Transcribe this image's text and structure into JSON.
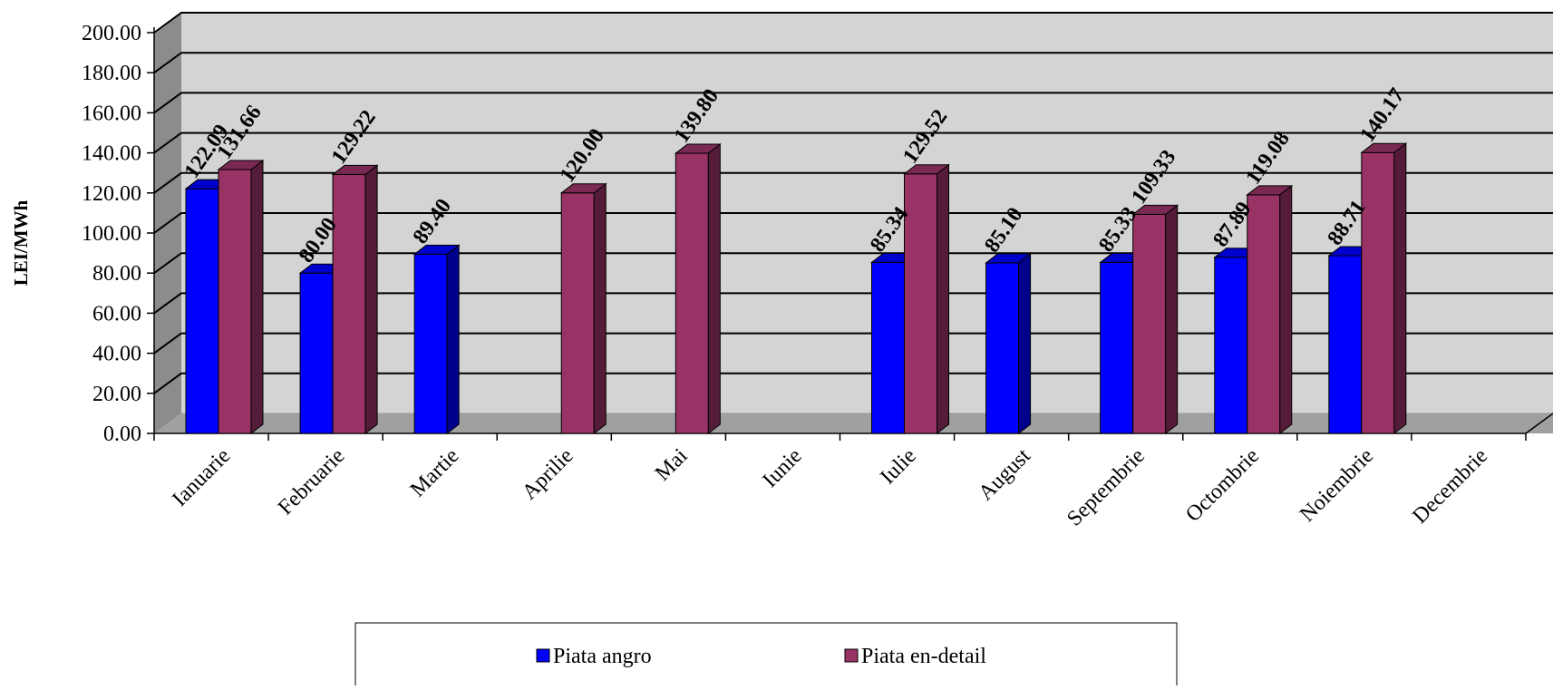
{
  "chart_data": {
    "type": "bar",
    "title": "",
    "xlabel": "",
    "ylabel": "LEI/MWh",
    "ylim": [
      0,
      200
    ],
    "y_ticks": [
      "0.00",
      "20.00",
      "40.00",
      "60.00",
      "80.00",
      "100.00",
      "120.00",
      "140.00",
      "160.00",
      "180.00",
      "200.00"
    ],
    "grid": true,
    "legend_position": "bottom",
    "categories": [
      "Ianuarie",
      "Februarie",
      "Martie",
      "Aprilie",
      "Mai",
      "Iunie",
      "Iulie",
      "August",
      "Septembrie",
      "Octombrie",
      "Noiembrie",
      "Decembrie"
    ],
    "series": [
      {
        "name": "Piata angro",
        "color": "#0000ff",
        "values": [
          122.09,
          80.0,
          89.4,
          null,
          null,
          null,
          85.34,
          85.1,
          85.33,
          87.89,
          88.71,
          null
        ],
        "labels": [
          "122.09",
          "80.00",
          "89.40",
          "",
          "",
          "",
          "85.34",
          "85.10",
          "85.33",
          "87.89",
          "88.71",
          ""
        ]
      },
      {
        "name": "Piata en-detail",
        "color": "#993366",
        "values": [
          131.66,
          129.22,
          null,
          120.0,
          139.8,
          null,
          129.52,
          null,
          109.33,
          119.08,
          140.17,
          null
        ],
        "labels": [
          "131.66",
          "129.22",
          "",
          "120.00",
          "139.80",
          "",
          "129.52",
          "",
          "109.33",
          "119.08",
          "140.17",
          ""
        ]
      }
    ]
  }
}
